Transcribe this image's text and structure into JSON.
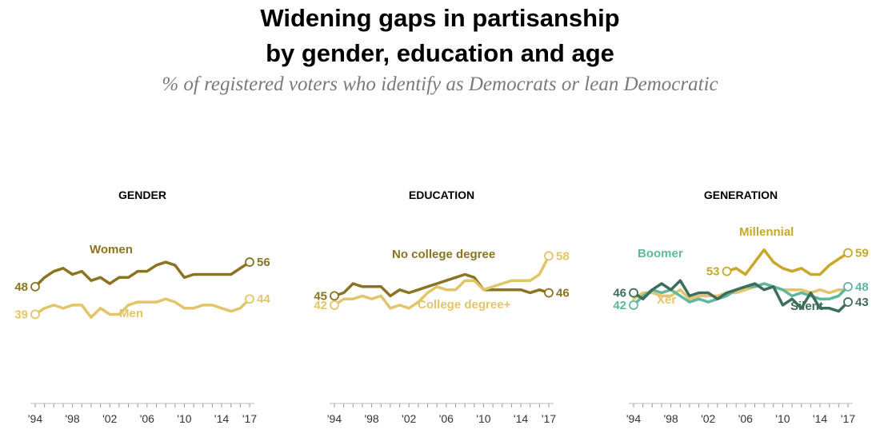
{
  "title_line1": "Widening gaps in partisanship",
  "title_line2": "by gender, education and age",
  "subtitle": "% of registered voters who identify as Democrats or lean Democratic",
  "colors": {
    "dark_gold": "#8C7323",
    "light_gold": "#E2C56A",
    "gold": "#C9A72A",
    "teal": "#5FB79E",
    "dark_green": "#3C6E5B"
  },
  "chart_data": [
    {
      "type": "line",
      "title": "GENDER",
      "x": [
        1994,
        1995,
        1996,
        1997,
        1998,
        1999,
        2000,
        2001,
        2002,
        2003,
        2004,
        2005,
        2006,
        2007,
        2008,
        2009,
        2010,
        2011,
        2012,
        2013,
        2014,
        2015,
        2016,
        2017
      ],
      "xticks": [
        "'94",
        "'98",
        "'02",
        "'06",
        "'10",
        "'14",
        "'17"
      ],
      "xtick_values": [
        1994,
        1998,
        2002,
        2006,
        2010,
        2014,
        2017
      ],
      "ylim": [
        10,
        75
      ],
      "series": [
        {
          "name": "Women",
          "color": "#8C7323",
          "values": [
            48,
            51,
            53,
            54,
            52,
            53,
            50,
            51,
            49,
            51,
            51,
            53,
            53,
            55,
            56,
            55,
            51,
            52,
            52,
            52,
            52,
            52,
            54,
            56
          ],
          "start_label": "48",
          "end_label": "56"
        },
        {
          "name": "Men",
          "color": "#E2C56A",
          "values": [
            39,
            41,
            42,
            41,
            42,
            42,
            38,
            41,
            39,
            39,
            42,
            43,
            43,
            43,
            44,
            43,
            41,
            41,
            42,
            42,
            41,
            40,
            41,
            44
          ],
          "start_label": "39",
          "end_label": "44"
        }
      ]
    },
    {
      "type": "line",
      "title": "EDUCATION",
      "x": [
        1994,
        1995,
        1996,
        1997,
        1998,
        1999,
        2000,
        2001,
        2002,
        2003,
        2004,
        2005,
        2006,
        2007,
        2008,
        2009,
        2010,
        2011,
        2012,
        2013,
        2014,
        2015,
        2016,
        2017
      ],
      "xticks": [
        "'94",
        "'98",
        "'02",
        "'06",
        "'10",
        "'14",
        "'17"
      ],
      "xtick_values": [
        1994,
        1998,
        2002,
        2006,
        2010,
        2014,
        2017
      ],
      "ylim": [
        10,
        75
      ],
      "series": [
        {
          "name": "No college degree",
          "color": "#8C7323",
          "values": [
            45,
            46,
            49,
            48,
            48,
            48,
            45,
            47,
            46,
            47,
            48,
            49,
            50,
            51,
            52,
            51,
            47,
            47,
            47,
            47,
            47,
            46,
            47,
            46
          ],
          "start_label": "45",
          "end_label": "46"
        },
        {
          "name": "College degree+",
          "color": "#E2C56A",
          "values": [
            42,
            44,
            44,
            45,
            44,
            45,
            41,
            42,
            41,
            43,
            46,
            48,
            47,
            47,
            50,
            50,
            47,
            48,
            49,
            50,
            50,
            50,
            52,
            58
          ],
          "start_label": "42",
          "end_label": "58"
        }
      ]
    },
    {
      "type": "line",
      "title": "GENERATION",
      "x": [
        1994,
        1995,
        1996,
        1997,
        1998,
        1999,
        2000,
        2001,
        2002,
        2003,
        2004,
        2005,
        2006,
        2007,
        2008,
        2009,
        2010,
        2011,
        2012,
        2013,
        2014,
        2015,
        2016,
        2017
      ],
      "xticks": [
        "'94",
        "'98",
        "'02",
        "'06",
        "'10",
        "'14",
        "'17"
      ],
      "xtick_values": [
        1994,
        1998,
        2002,
        2006,
        2010,
        2014,
        2017
      ],
      "ylim": [
        10,
        75
      ],
      "series": [
        {
          "name": "Millennial",
          "color": "#C9A72A",
          "start_index": 10,
          "values": [
            null,
            null,
            null,
            null,
            null,
            null,
            null,
            null,
            null,
            null,
            53,
            54,
            52,
            56,
            60,
            56,
            54,
            53,
            54,
            52,
            52,
            55,
            57,
            59
          ],
          "start_label": "53",
          "end_label": "59"
        },
        {
          "name": "Xer",
          "color": "#E2C56A",
          "values": [
            44,
            46,
            46,
            45,
            45,
            47,
            44,
            45,
            45,
            45,
            46,
            46,
            47,
            48,
            49,
            48,
            47,
            47,
            47,
            46,
            47,
            46,
            47,
            47
          ],
          "start_label": "",
          "end_label": ""
        },
        {
          "name": "Boomer",
          "color": "#5FB79E",
          "values": [
            42,
            45,
            47,
            46,
            47,
            45,
            43,
            44,
            43,
            44,
            45,
            47,
            48,
            48,
            49,
            48,
            47,
            45,
            46,
            45,
            44,
            44,
            45,
            48
          ],
          "start_label": "42",
          "end_label": "48"
        },
        {
          "name": "Silent",
          "color": "#3C6E5B",
          "values": [
            46,
            44,
            47,
            49,
            47,
            50,
            45,
            46,
            46,
            44,
            46,
            47,
            48,
            49,
            47,
            48,
            42,
            44,
            41,
            46,
            41,
            41,
            40,
            43
          ],
          "start_label": "46",
          "end_label": "43"
        }
      ]
    }
  ]
}
